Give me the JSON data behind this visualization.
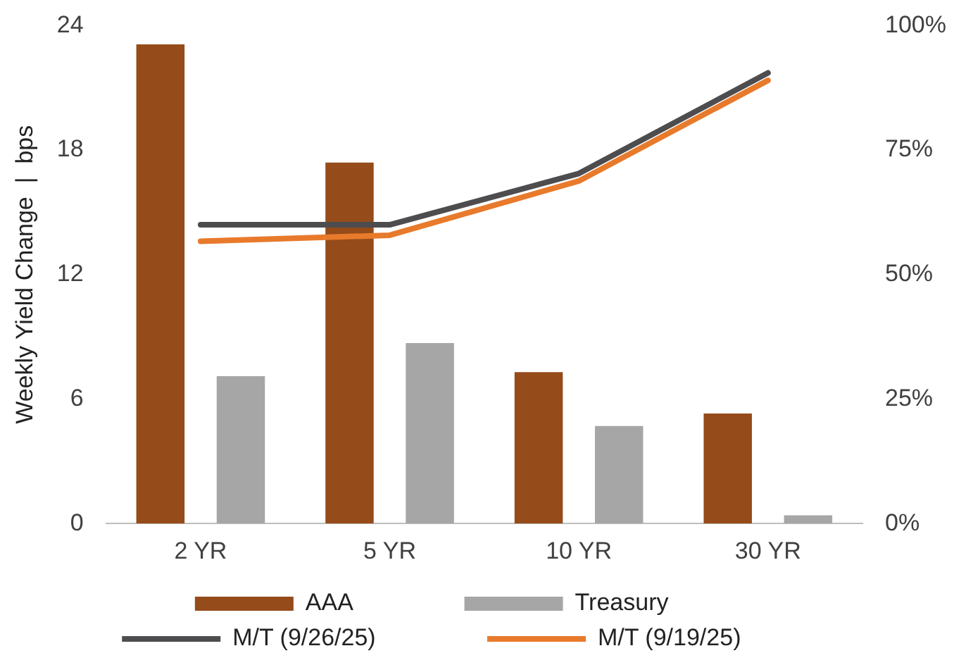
{
  "chart_data": {
    "type": "bar",
    "ylabel": "Weekly Yield Change  |  bps",
    "categories": [
      "2 YR",
      "5 YR",
      "10 YR",
      "30 YR"
    ],
    "series": [
      {
        "name": "AAA",
        "color": "#954b1a",
        "values": [
          23.1,
          17.4,
          7.3,
          5.3
        ]
      },
      {
        "name": "Treasury",
        "color": "#a6a6a6",
        "values": [
          7.1,
          8.7,
          4.7,
          0.4
        ]
      },
      {
        "name": "M/T (9/26/25)",
        "type": "line",
        "axis": "y2",
        "color": "#4d4d4f",
        "values": [
          60,
          60,
          70.3,
          90.5
        ]
      },
      {
        "name": "M/T (9/19/25)",
        "type": "line",
        "axis": "y2",
        "color": "#e87a2c",
        "values": [
          56.7,
          57.9,
          68.8,
          89
        ]
      }
    ],
    "ylim": [
      0,
      24
    ],
    "yticks": [
      0,
      6,
      12,
      18,
      24
    ],
    "y2lim": [
      0,
      100
    ],
    "y2ticks": [
      {
        "value": 0,
        "label": "0%"
      },
      {
        "value": 25,
        "label": "25%"
      },
      {
        "value": 50,
        "label": "50%"
      },
      {
        "value": 75,
        "label": "75%"
      },
      {
        "value": 100,
        "label": "100%"
      }
    ],
    "grid": false,
    "legend": "bottom",
    "marker": "none",
    "line_style": "solid"
  }
}
